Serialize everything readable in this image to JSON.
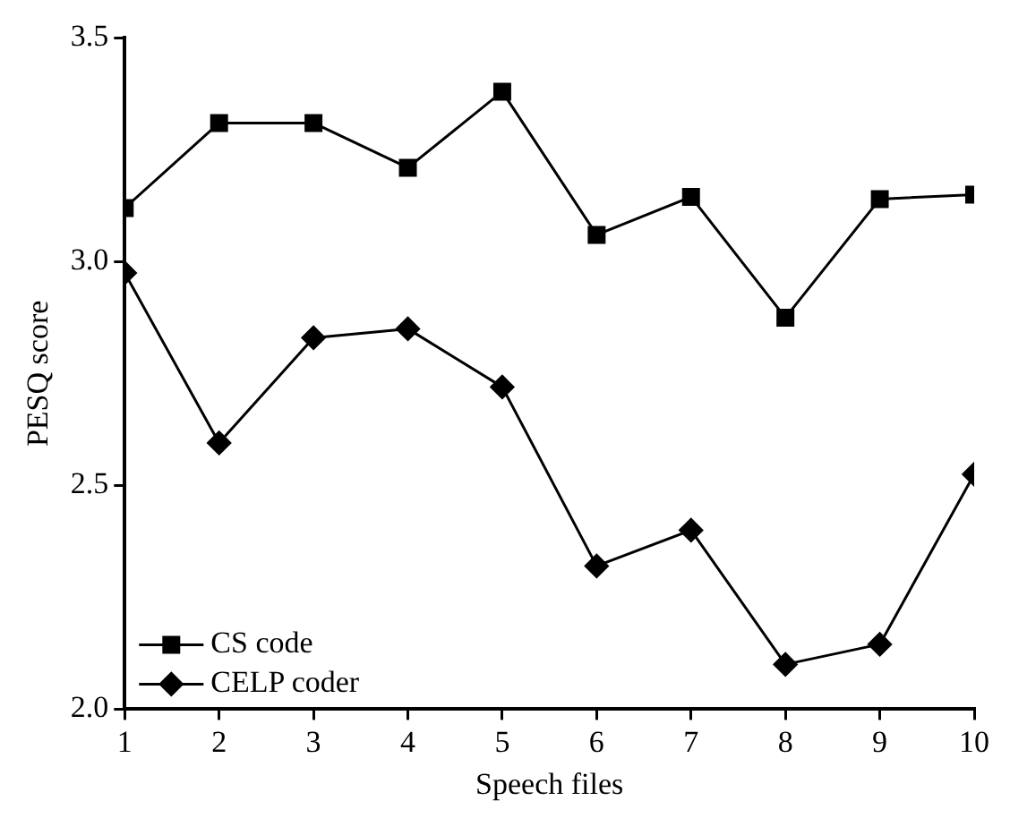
{
  "chart_data": {
    "type": "line",
    "xlabel": "Speech files",
    "ylabel": "PESQ score",
    "x": [
      1,
      2,
      3,
      4,
      5,
      6,
      7,
      8,
      9,
      10
    ],
    "series": [
      {
        "name": "CS code",
        "color": "#000000",
        "marker": "square",
        "values": [
          3.12,
          3.31,
          3.31,
          3.21,
          3.38,
          3.06,
          3.145,
          2.875,
          3.14,
          3.15
        ]
      },
      {
        "name": "CELP coder",
        "color": "#000000",
        "marker": "diamond",
        "values": [
          2.975,
          2.595,
          2.83,
          2.85,
          2.72,
          2.32,
          2.4,
          2.1,
          2.145,
          2.525
        ]
      }
    ],
    "xlim": [
      1,
      10
    ],
    "xticks": [
      1,
      2,
      3,
      4,
      5,
      6,
      7,
      8,
      9,
      10
    ],
    "ylim": [
      2.0,
      3.5
    ],
    "yticks": [
      {
        "value": 2,
        "label": "2.0"
      },
      {
        "value": 2.5,
        "label": "2.5"
      },
      {
        "value": 3,
        "label": "3.0"
      },
      {
        "value": 3.5,
        "label": "3.5"
      }
    ],
    "grid": false,
    "legend": "bottom left",
    "line_style": "solid"
  }
}
